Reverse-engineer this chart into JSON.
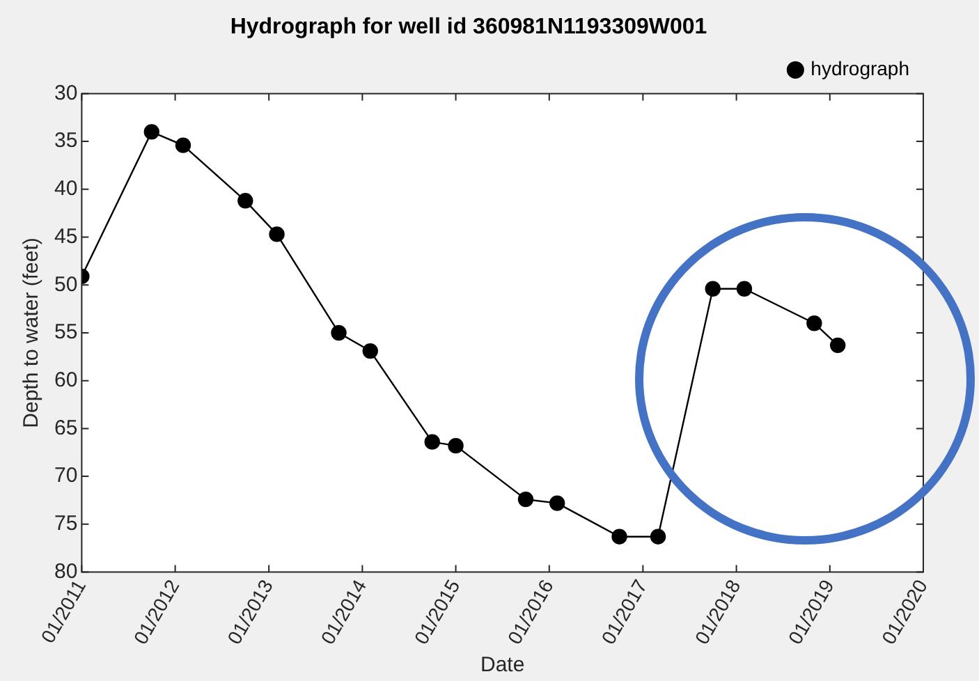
{
  "chart_data": {
    "type": "line",
    "title": "Hydrograph for well id 360981N1193309W001",
    "xlabel": "Date",
    "ylabel": "Depth to water (feet)",
    "x": [
      "2011-01",
      "2011-10",
      "2012-02",
      "2012-10",
      "2013-02",
      "2013-10",
      "2014-02",
      "2014-10",
      "2015-01",
      "2015-10",
      "2016-02",
      "2016-10",
      "2017-03",
      "2017-10",
      "2018-02",
      "2018-11",
      "2019-02"
    ],
    "series": [
      {
        "name": "hydrograph",
        "color": "#000000",
        "values": [
          49.1,
          34.0,
          35.4,
          41.2,
          44.7,
          55.0,
          56.9,
          66.4,
          66.8,
          72.4,
          72.8,
          76.3,
          76.3,
          50.4,
          50.4,
          54.0,
          56.3
        ]
      }
    ],
    "xlim": [
      "2011-01",
      "2020-01"
    ],
    "xticks": [
      {
        "value": "2011-01",
        "label": "01/2011"
      },
      {
        "value": "2012-01",
        "label": "01/2012"
      },
      {
        "value": "2013-01",
        "label": "01/2013"
      },
      {
        "value": "2014-01",
        "label": "01/2014"
      },
      {
        "value": "2015-01",
        "label": "01/2015"
      },
      {
        "value": "2016-01",
        "label": "01/2016"
      },
      {
        "value": "2017-01",
        "label": "01/2017"
      },
      {
        "value": "2018-01",
        "label": "01/2018"
      },
      {
        "value": "2019-01",
        "label": "01/2019"
      },
      {
        "value": "2020-01",
        "label": "01/2020"
      }
    ],
    "ylim": [
      80,
      30
    ],
    "yticks": [
      30,
      35,
      40,
      45,
      50,
      55,
      60,
      65,
      70,
      75,
      80
    ],
    "grid": false,
    "legend": "top right",
    "marker": "circle",
    "line_style": "solid"
  }
}
